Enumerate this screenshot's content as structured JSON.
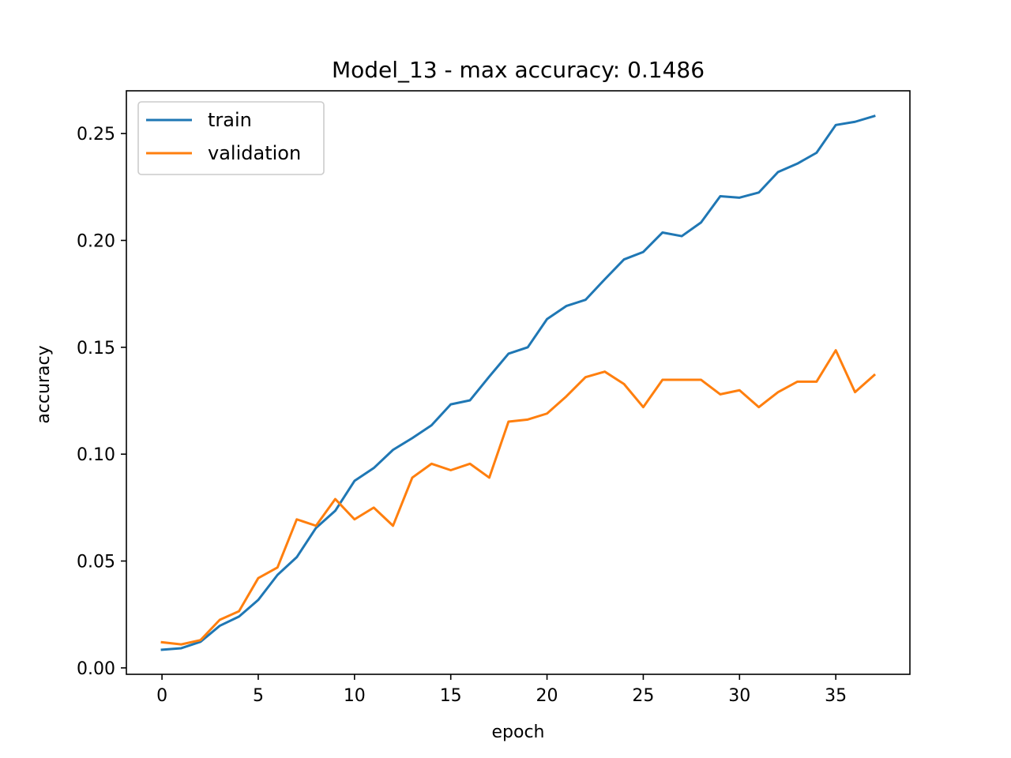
{
  "chart_data": {
    "type": "line",
    "title": "Model_13 - max accuracy: 0.1486",
    "xlabel": "epoch",
    "ylabel": "accuracy",
    "xlim": [
      -1.85,
      38.85
    ],
    "ylim": [
      -0.003,
      0.27
    ],
    "xticks": [
      0,
      5,
      10,
      15,
      20,
      25,
      30,
      35
    ],
    "xtick_labels": [
      "0",
      "5",
      "10",
      "15",
      "20",
      "25",
      "30",
      "35"
    ],
    "yticks": [
      0.0,
      0.05,
      0.1,
      0.15,
      0.2,
      0.25
    ],
    "ytick_labels": [
      "0.00",
      "0.05",
      "0.10",
      "0.15",
      "0.20",
      "0.25"
    ],
    "grid": false,
    "legend_position": "top-left",
    "x": [
      0,
      1,
      2,
      3,
      4,
      5,
      6,
      7,
      8,
      9,
      10,
      11,
      12,
      13,
      14,
      15,
      16,
      17,
      18,
      19,
      20,
      21,
      22,
      23,
      24,
      25,
      26,
      27,
      28,
      29,
      30,
      31,
      32,
      33,
      34,
      35,
      36,
      37
    ],
    "series": [
      {
        "name": "train",
        "color": "#1f77b4",
        "values": [
          0.0085,
          0.0092,
          0.0122,
          0.0197,
          0.024,
          0.0318,
          0.0435,
          0.0518,
          0.0655,
          0.0735,
          0.0875,
          0.0935,
          0.102,
          0.1075,
          0.1135,
          0.1233,
          0.1252,
          0.1363,
          0.147,
          0.15,
          0.1632,
          0.1693,
          0.1722,
          0.1818,
          0.1911,
          0.1946,
          0.2037,
          0.202,
          0.2084,
          0.2207,
          0.22,
          0.2224,
          0.232,
          0.2359,
          0.241,
          0.254,
          0.2555,
          0.2582
        ]
      },
      {
        "name": "validation",
        "color": "#ff7f0e",
        "values": [
          0.012,
          0.011,
          0.013,
          0.0225,
          0.0265,
          0.042,
          0.047,
          0.0695,
          0.0665,
          0.079,
          0.0695,
          0.075,
          0.0665,
          0.089,
          0.0955,
          0.0925,
          0.0955,
          0.089,
          0.1152,
          0.1162,
          0.119,
          0.127,
          0.136,
          0.1386,
          0.1328,
          0.122,
          0.1348,
          0.1348,
          0.1348,
          0.128,
          0.1299,
          0.122,
          0.129,
          0.1339,
          0.1339,
          0.1486,
          0.129,
          0.137
        ]
      }
    ]
  }
}
